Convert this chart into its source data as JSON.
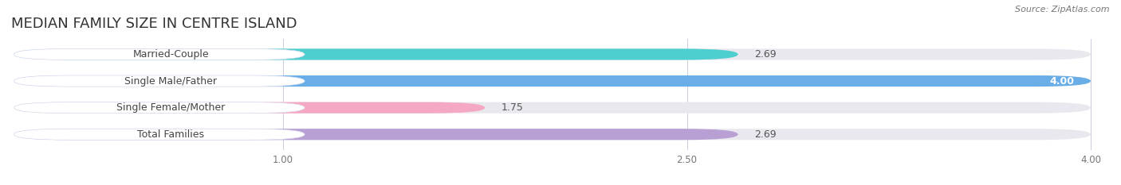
{
  "title": "MEDIAN FAMILY SIZE IN CENTRE ISLAND",
  "source": "Source: ZipAtlas.com",
  "categories": [
    "Married-Couple",
    "Single Male/Father",
    "Single Female/Mother",
    "Total Families"
  ],
  "values": [
    2.69,
    4.0,
    1.75,
    2.69
  ],
  "bar_colors": [
    "#4ecece",
    "#6aaee8",
    "#f5a8c4",
    "#b8a0d4"
  ],
  "x_min": 0.0,
  "x_max": 4.0,
  "x_ticks": [
    1.0,
    2.5,
    4.0
  ],
  "x_tick_labels": [
    "1.00",
    "2.50",
    "4.00"
  ],
  "bar_height": 0.42,
  "value_fontsize": 9,
  "label_fontsize": 9,
  "title_fontsize": 13,
  "source_fontsize": 8,
  "background_color": "#ffffff",
  "track_color": "#e8e8ee"
}
